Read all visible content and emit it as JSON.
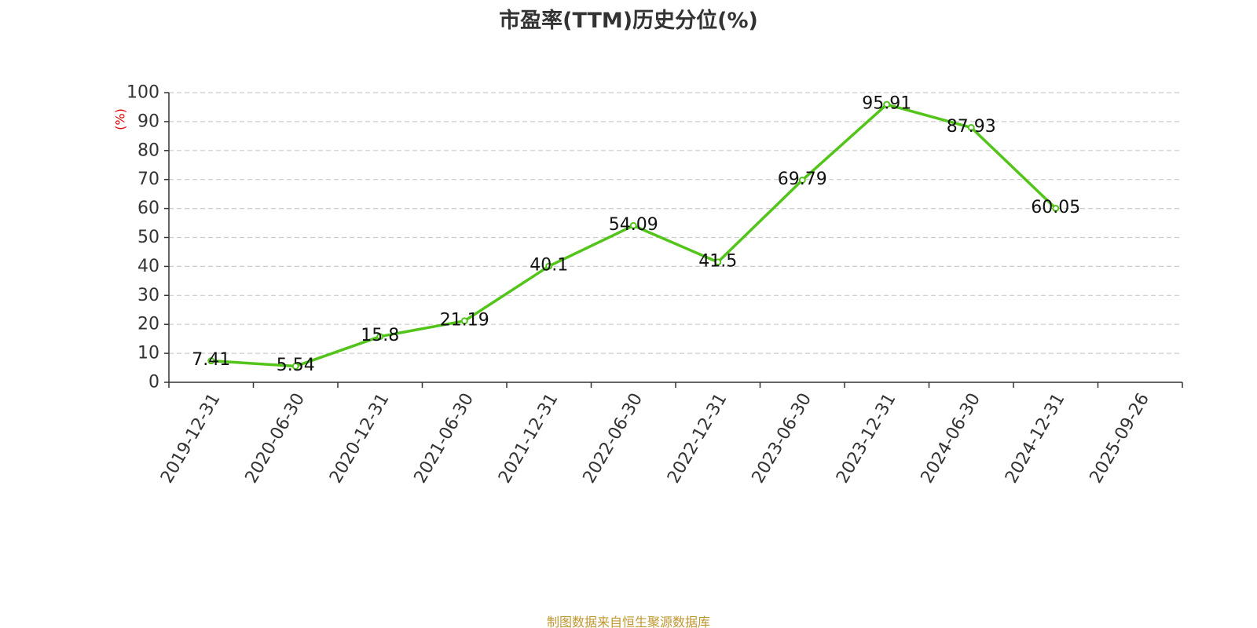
{
  "title": "市盈率(TTM)历史分位(%)",
  "source": "制图数据来自恒生聚源数据库",
  "colors": {
    "line": "#52c41a",
    "grid": "#cccccc",
    "axis": "#333333",
    "unit": "#e00000",
    "source": "#c0962f"
  },
  "chart_data": {
    "type": "line",
    "ylabel": "(%)",
    "ylim": [
      0,
      100
    ],
    "yticks": [
      0,
      10,
      20,
      30,
      40,
      50,
      60,
      70,
      80,
      90,
      100
    ],
    "grid": true,
    "xticks": [
      "2019-12-31",
      "2020-06-30",
      "2020-12-31",
      "2021-06-30",
      "2021-12-31",
      "2022-06-30",
      "2022-12-31",
      "2023-06-30",
      "2023-12-31",
      "2024-06-30",
      "2024-12-31",
      "2025-09-26"
    ],
    "series": [
      {
        "x": [
          "2019-12-31",
          "2020-06-30",
          "2020-12-31",
          "2021-06-30",
          "2021-12-31",
          "2022-06-30",
          "2022-12-31",
          "2023-06-30",
          "2023-12-31",
          "2024-06-30",
          "2024-12-31"
        ],
        "values": [
          7.41,
          5.54,
          15.8,
          21.19,
          40.1,
          54.09,
          41.5,
          69.79,
          95.91,
          87.93,
          60.05
        ],
        "labels": [
          "7.41",
          "5.54",
          "15.8",
          "21.19",
          "40.1",
          "54.09",
          "41.5",
          "69.79",
          "95.91",
          "87.93",
          "60.05"
        ]
      }
    ]
  }
}
